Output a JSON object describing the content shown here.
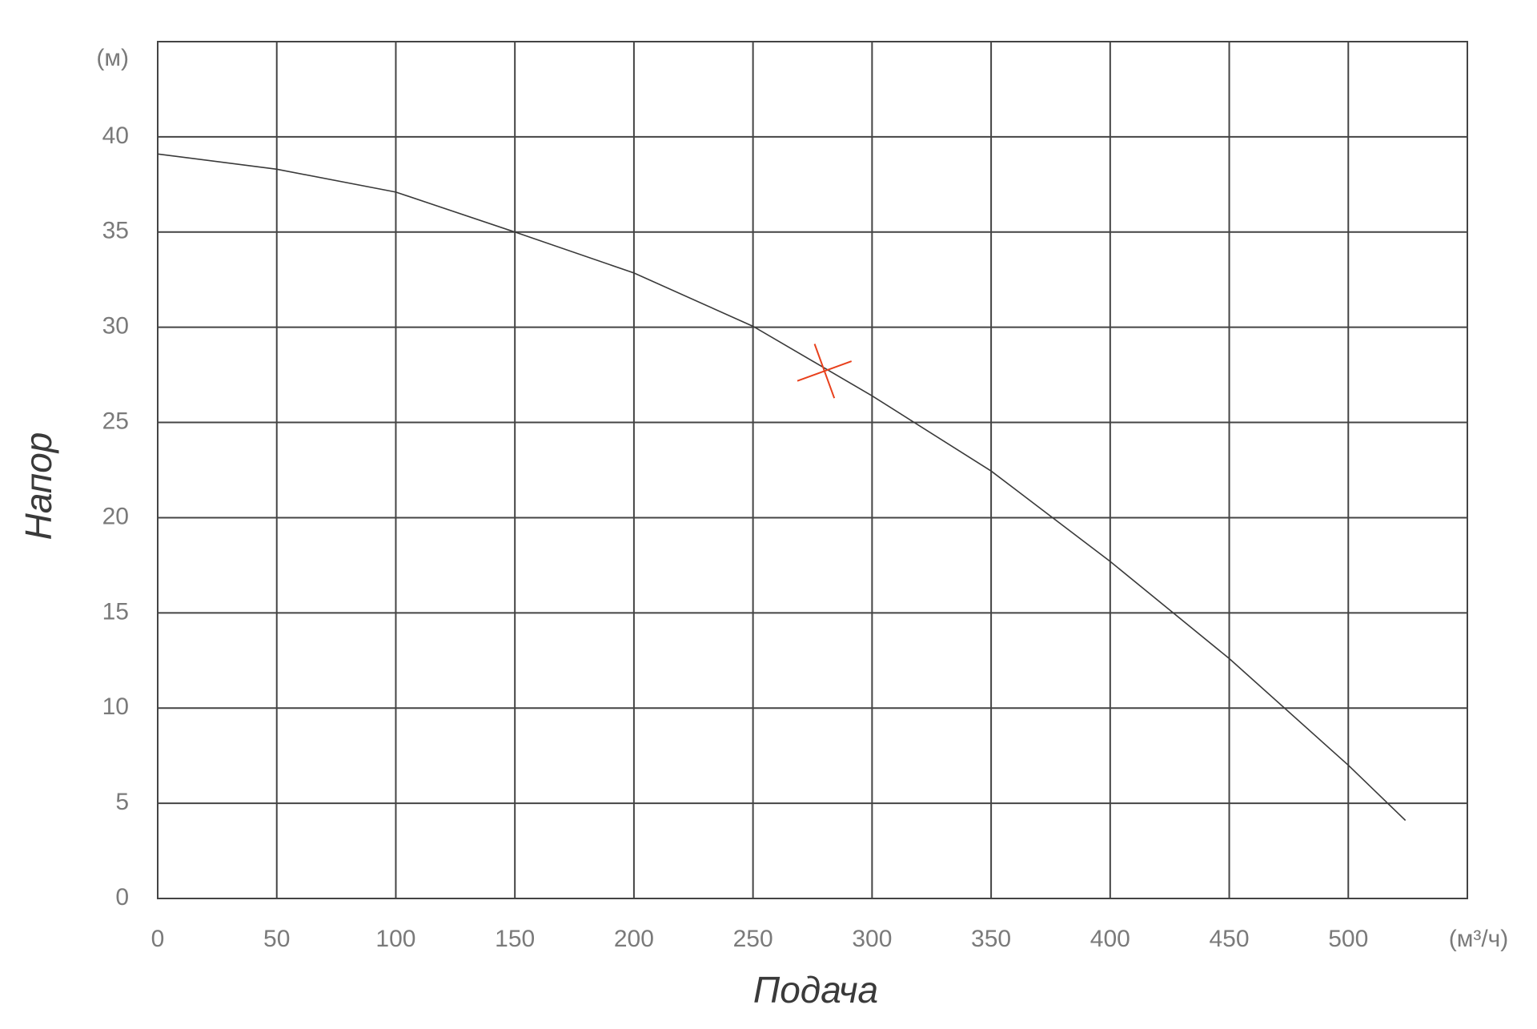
{
  "chart_data": {
    "type": "line",
    "x_label": "Подача",
    "y_label": "Напор",
    "x_unit": "(м³/ч)",
    "y_unit": "(м)",
    "x": [
      0,
      50,
      100,
      150,
      200,
      250,
      300,
      350,
      400,
      450,
      500,
      524
    ],
    "values": [
      39.1,
      38.3,
      37.1,
      35.0,
      32.85,
      30.05,
      26.4,
      22.45,
      17.7,
      12.6,
      7.0,
      4.1
    ],
    "color": "#3a3a3a",
    "operating_point": {
      "x": 280,
      "y": 27.7,
      "color": "#e8401c"
    },
    "xlim": [
      0,
      550
    ],
    "xticks": [
      0,
      50,
      100,
      150,
      200,
      250,
      300,
      350,
      400,
      450,
      500
    ],
    "ylim": [
      0,
      45
    ],
    "yticks": [
      0,
      5,
      10,
      15,
      20,
      25,
      30,
      35,
      40
    ],
    "grid": true
  }
}
